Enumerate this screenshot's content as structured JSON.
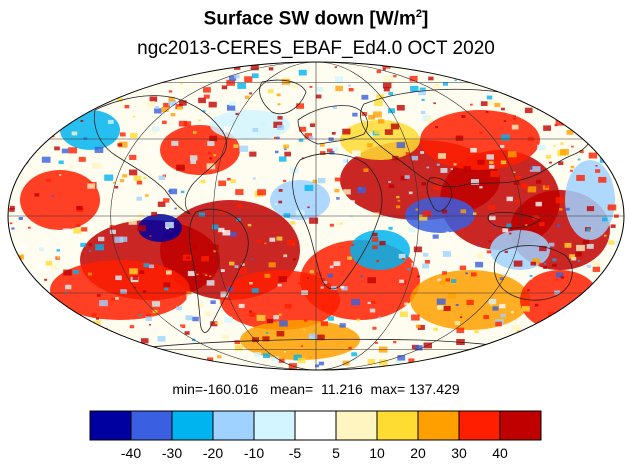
{
  "title_text": "Surface SW down [W/m",
  "title_sup": "2",
  "title_close": "]",
  "subtitle": "ngc2013-CERES_EBAF_Ed4.0  OCT 2020",
  "stats": {
    "min_label": "min=",
    "min_value": "-160.016",
    "mean_label": "mean=",
    "mean_value": "11.216",
    "max_label": "max=",
    "max_value": "137.429"
  },
  "colorbar": {
    "colors": [
      "#0000a0",
      "#3a5fe0",
      "#00b4f0",
      "#a0d2ff",
      "#d2f5ff",
      "#ffffff",
      "#fff5c0",
      "#ffdc32",
      "#ffa000",
      "#ff1e00",
      "#c00000"
    ],
    "tick_labels": [
      "-40",
      "-30",
      "-20",
      "-10",
      "-5",
      "5",
      "10",
      "20",
      "30",
      "40"
    ]
  },
  "map": {
    "projection": "Mollweide",
    "field": "Surface SW down difference"
  }
}
